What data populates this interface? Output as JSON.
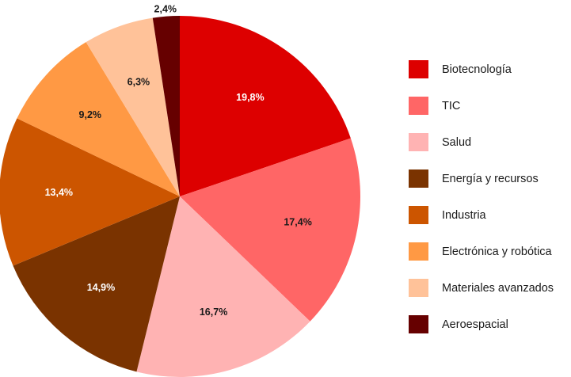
{
  "chart_data": {
    "type": "pie",
    "title": "",
    "slices": [
      {
        "label": "Biotecnología",
        "value": 19.8,
        "display": "19,8%",
        "color": "#dd0000",
        "label_color": "#ffffff"
      },
      {
        "label": "TIC",
        "value": 17.4,
        "display": "17,4%",
        "color": "#ff6666",
        "label_color": "#1a1a1a"
      },
      {
        "label": "Salud",
        "value": 16.7,
        "display": "16,7%",
        "color": "#ffb3b3",
        "label_color": "#1a1a1a"
      },
      {
        "label": "Energía y recursos",
        "value": 14.9,
        "display": "14,9%",
        "color": "#7a3300",
        "label_color": "#ffffff"
      },
      {
        "label": "Industria",
        "value": 13.4,
        "display": "13,4%",
        "color": "#cc5500",
        "label_color": "#ffffff"
      },
      {
        "label": "Electrónica y robótica",
        "value": 9.2,
        "display": "9,2%",
        "color": "#ff9944",
        "label_color": "#1a1a1a"
      },
      {
        "label": "Materiales avanzados",
        "value": 6.3,
        "display": "6,3%",
        "color": "#ffc299",
        "label_color": "#1a1a1a"
      },
      {
        "label": "Aeroespacial",
        "value": 2.4,
        "display": "2,4%",
        "color": "#660000",
        "label_color": "#1a1a1a"
      }
    ],
    "legend_position": "right"
  }
}
